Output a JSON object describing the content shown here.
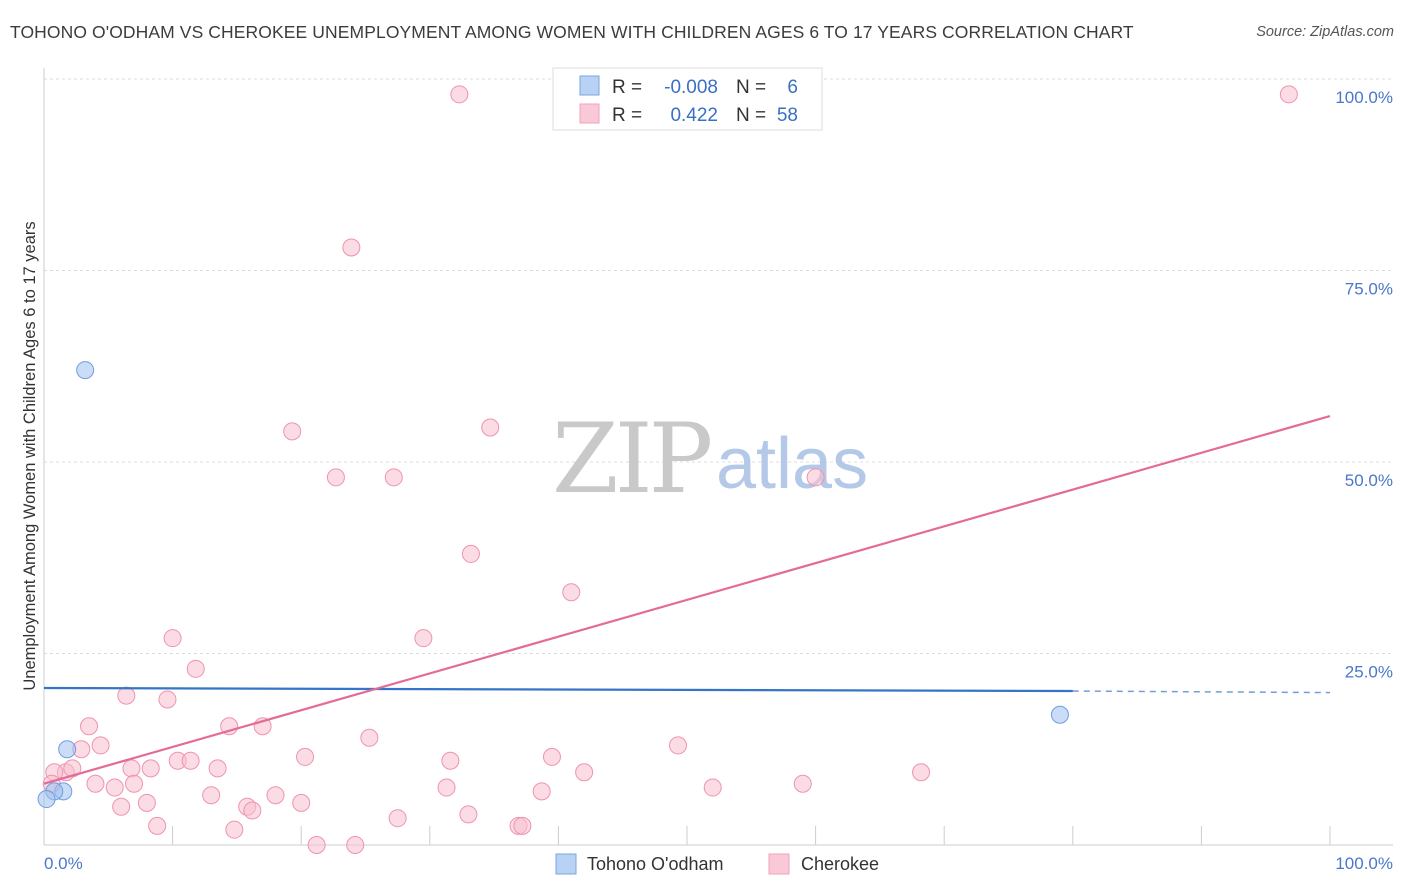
{
  "title": "TOHONO O'ODHAM VS CHEROKEE UNEMPLOYMENT AMONG WOMEN WITH CHILDREN AGES 6 TO 17 YEARS CORRELATION CHART",
  "source": "Source: ZipAtlas.com",
  "watermark": {
    "zip": "ZIP",
    "atlas": "atlas"
  },
  "chart_data": {
    "type": "scatter",
    "title": "TOHONO O'ODHAM VS CHEROKEE UNEMPLOYMENT AMONG WOMEN WITH CHILDREN AGES 6 TO 17 YEARS CORRELATION CHART",
    "xlabel": "",
    "ylabel": "Unemployment Among Women with Children Ages 6 to 17 years",
    "xlim": [
      0,
      100
    ],
    "ylim": [
      0,
      100
    ],
    "x_tick_labels": [
      "0.0%",
      "100.0%"
    ],
    "y_tick_values": [
      25,
      50,
      75,
      100
    ],
    "y_tick_labels": [
      "25.0%",
      "50.0%",
      "75.0%",
      "100.0%"
    ],
    "grid": "horizontal dashed",
    "legend_position": "top-center",
    "legend": [
      {
        "r_label": "R =",
        "r_value": "-0.008",
        "n_label": "N =",
        "n_value": "6"
      },
      {
        "r_label": "R =",
        "r_value": "0.422",
        "n_label": "N =",
        "n_value": "58"
      }
    ],
    "series": [
      {
        "name": "Tohono O'odham",
        "color": "#9ec0ef",
        "stroke": "#6f9ee0",
        "trend_color": "#3575c9",
        "trend": {
          "x0": 0,
          "y0": 20.5,
          "x1": 80,
          "y1": 20.1,
          "dash_to_x": 100,
          "dash_to_y": 19.9
        },
        "points": [
          [
            3.2,
            62
          ],
          [
            1.8,
            12.5
          ],
          [
            1.5,
            7.0
          ],
          [
            0.8,
            7.0
          ],
          [
            0.2,
            6.0
          ],
          [
            79.0,
            17.0
          ]
        ]
      },
      {
        "name": "Cherokee",
        "color": "#f7bfd0",
        "stroke": "#ef93b0",
        "trend_color": "#e36b96",
        "trend": {
          "x0": 0,
          "y0": 8.0,
          "x1": 100,
          "y1": 56.0
        },
        "points": [
          [
            32.3,
            98
          ],
          [
            96.8,
            98
          ],
          [
            23.9,
            78
          ],
          [
            19.3,
            54
          ],
          [
            34.7,
            54.5
          ],
          [
            22.7,
            48
          ],
          [
            27.2,
            48
          ],
          [
            60.0,
            48
          ],
          [
            33.2,
            38
          ],
          [
            41.0,
            33
          ],
          [
            10.0,
            27
          ],
          [
            11.8,
            23
          ],
          [
            29.5,
            27
          ],
          [
            6.4,
            19.5
          ],
          [
            9.6,
            19
          ],
          [
            3.5,
            15.5
          ],
          [
            14.4,
            15.5
          ],
          [
            17.0,
            15.5
          ],
          [
            25.3,
            14
          ],
          [
            4.4,
            13
          ],
          [
            2.9,
            12.5
          ],
          [
            20.3,
            11.5
          ],
          [
            31.6,
            11
          ],
          [
            39.5,
            11.5
          ],
          [
            49.3,
            13
          ],
          [
            10.4,
            11
          ],
          [
            11.4,
            11
          ],
          [
            13.5,
            10
          ],
          [
            8.3,
            10
          ],
          [
            6.8,
            10
          ],
          [
            1.7,
            9.5
          ],
          [
            2.2,
            10
          ],
          [
            0.8,
            9.5
          ],
          [
            0.6,
            8
          ],
          [
            4.0,
            8
          ],
          [
            5.5,
            7.5
          ],
          [
            7.0,
            8
          ],
          [
            13.0,
            6.5
          ],
          [
            18.0,
            6.5
          ],
          [
            20.0,
            5.5
          ],
          [
            15.8,
            5
          ],
          [
            16.2,
            4.5
          ],
          [
            6.0,
            5
          ],
          [
            8.0,
            5.5
          ],
          [
            31.3,
            7.5
          ],
          [
            38.7,
            7
          ],
          [
            42.0,
            9.5
          ],
          [
            59.0,
            8
          ],
          [
            68.2,
            9.5
          ],
          [
            52.0,
            7.5
          ],
          [
            27.5,
            3.5
          ],
          [
            33.0,
            4
          ],
          [
            8.8,
            2.5
          ],
          [
            14.8,
            2
          ],
          [
            21.2,
            0
          ],
          [
            24.2,
            0
          ],
          [
            36.9,
            2.5
          ],
          [
            37.2,
            2.5
          ]
        ]
      }
    ]
  }
}
